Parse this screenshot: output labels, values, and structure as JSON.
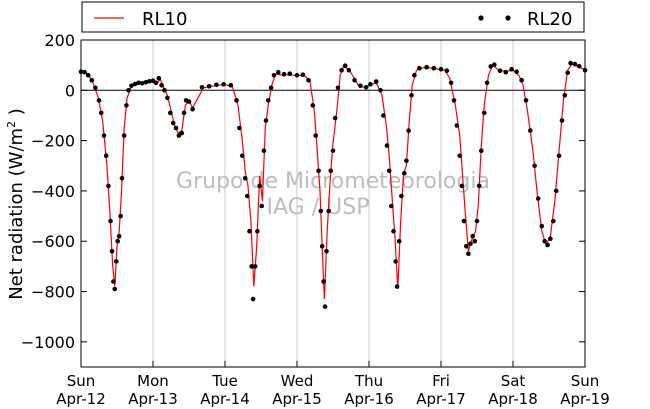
{
  "chart_data": {
    "type": "line",
    "ylabel_main": "Net radiation (W/m",
    "ylabel_sup": "2",
    "ylabel_end": " )",
    "xlabel": "",
    "title": "",
    "ylim": [
      -1100,
      200
    ],
    "xlim": [
      0,
      7
    ],
    "yticks": [
      200,
      0,
      -200,
      -400,
      -600,
      -800,
      -1000
    ],
    "ytick_labels": [
      "200",
      "0",
      "−200",
      "−400",
      "−600",
      "−800",
      "−1000"
    ],
    "xticks": [
      0,
      1,
      2,
      3,
      4,
      5,
      6,
      7
    ],
    "xtick_labels": [
      [
        "Sun",
        "Apr-12"
      ],
      [
        "Mon",
        "Apr-13"
      ],
      [
        "Tue",
        "Apr-14"
      ],
      [
        "Wed",
        "Apr-15"
      ],
      [
        "Thu",
        "Apr-16"
      ],
      [
        "Fri",
        "Apr-17"
      ],
      [
        "Sat",
        "Apr-18"
      ],
      [
        "Sun",
        "Apr-19"
      ]
    ],
    "grid": "vertical",
    "zero_line": 0,
    "legend": {
      "placement": "top",
      "entries": [
        {
          "name": "RL10",
          "style": "line",
          "color": "#ff0000"
        },
        {
          "name": "RL20",
          "style": "markers",
          "color": "#000000"
        }
      ]
    },
    "watermark": [
      "Grupo de Micrometeorologia",
      "IAG / USP"
    ],
    "series": [
      {
        "name": "RL10",
        "color": "#ff0000",
        "points": [
          [
            0.0,
            72
          ],
          [
            0.06,
            70
          ],
          [
            0.12,
            55
          ],
          [
            0.18,
            20
          ],
          [
            0.24,
            -30
          ],
          [
            0.3,
            -120
          ],
          [
            0.36,
            -300
          ],
          [
            0.4,
            -480
          ],
          [
            0.44,
            -700
          ],
          [
            0.47,
            -780
          ],
          [
            0.5,
            -620
          ],
          [
            0.53,
            -560
          ],
          [
            0.56,
            -420
          ],
          [
            0.6,
            -150
          ],
          [
            0.64,
            -30
          ],
          [
            0.7,
            15
          ],
          [
            0.8,
            28
          ],
          [
            0.9,
            30
          ],
          [
            1.0,
            35
          ],
          [
            1.05,
            25
          ],
          [
            1.1,
            45
          ],
          [
            1.15,
            10
          ],
          [
            1.2,
            -20
          ],
          [
            1.25,
            -80
          ],
          [
            1.3,
            -140
          ],
          [
            1.35,
            -170
          ],
          [
            1.4,
            -160
          ],
          [
            1.45,
            -60
          ],
          [
            1.5,
            -40
          ],
          [
            1.55,
            -70
          ],
          [
            1.7,
            10
          ],
          [
            1.8,
            15
          ],
          [
            1.9,
            20
          ],
          [
            2.0,
            22
          ],
          [
            2.1,
            18
          ],
          [
            2.18,
            -60
          ],
          [
            2.24,
            -200
          ],
          [
            2.28,
            -320
          ],
          [
            2.32,
            -380
          ],
          [
            2.36,
            -520
          ],
          [
            2.4,
            -780
          ],
          [
            2.44,
            -620
          ],
          [
            2.48,
            -340
          ],
          [
            2.52,
            -440
          ],
          [
            2.56,
            -150
          ],
          [
            2.6,
            -60
          ],
          [
            2.65,
            20
          ],
          [
            2.7,
            65
          ],
          [
            2.8,
            60
          ],
          [
            2.9,
            62
          ],
          [
            3.0,
            58
          ],
          [
            3.1,
            60
          ],
          [
            3.18,
            35
          ],
          [
            3.24,
            -80
          ],
          [
            3.28,
            -240
          ],
          [
            3.32,
            -400
          ],
          [
            3.36,
            -700
          ],
          [
            3.38,
            -830
          ],
          [
            3.42,
            -560
          ],
          [
            3.46,
            -360
          ],
          [
            3.5,
            -210
          ],
          [
            3.55,
            -90
          ],
          [
            3.6,
            60
          ],
          [
            3.65,
            100
          ],
          [
            3.75,
            70
          ],
          [
            3.85,
            20
          ],
          [
            3.95,
            10
          ],
          [
            4.0,
            20
          ],
          [
            4.1,
            30
          ],
          [
            4.18,
            -20
          ],
          [
            4.24,
            -140
          ],
          [
            4.28,
            -260
          ],
          [
            4.32,
            -420
          ],
          [
            4.36,
            -580
          ],
          [
            4.4,
            -790
          ],
          [
            4.44,
            -520
          ],
          [
            4.48,
            -330
          ],
          [
            4.52,
            -300
          ],
          [
            4.56,
            -120
          ],
          [
            4.6,
            20
          ],
          [
            4.66,
            80
          ],
          [
            4.75,
            90
          ],
          [
            4.85,
            90
          ],
          [
            4.95,
            85
          ],
          [
            5.05,
            80
          ],
          [
            5.12,
            50
          ],
          [
            5.2,
            -60
          ],
          [
            5.26,
            -180
          ],
          [
            5.3,
            -340
          ],
          [
            5.34,
            -500
          ],
          [
            5.38,
            -640
          ],
          [
            5.42,
            -600
          ],
          [
            5.48,
            -560
          ],
          [
            5.52,
            -450
          ],
          [
            5.56,
            -220
          ],
          [
            5.6,
            -60
          ],
          [
            5.66,
            60
          ],
          [
            5.72,
            100
          ],
          [
            5.8,
            80
          ],
          [
            5.9,
            75
          ],
          [
            6.0,
            80
          ],
          [
            6.08,
            60
          ],
          [
            6.14,
            20
          ],
          [
            6.2,
            -80
          ],
          [
            6.28,
            -250
          ],
          [
            6.34,
            -420
          ],
          [
            6.4,
            -560
          ],
          [
            6.46,
            -615
          ],
          [
            6.52,
            -580
          ],
          [
            6.58,
            -440
          ],
          [
            6.64,
            -240
          ],
          [
            6.7,
            -40
          ],
          [
            6.76,
            80
          ],
          [
            6.82,
            105
          ],
          [
            6.9,
            95
          ],
          [
            7.0,
            82
          ]
        ]
      },
      {
        "name": "RL20",
        "color": "#000000",
        "points": [
          [
            0.0,
            74
          ],
          [
            0.05,
            72
          ],
          [
            0.1,
            60
          ],
          [
            0.15,
            40
          ],
          [
            0.2,
            10
          ],
          [
            0.25,
            -40
          ],
          [
            0.28,
            -90
          ],
          [
            0.32,
            -180
          ],
          [
            0.35,
            -260
          ],
          [
            0.38,
            -380
          ],
          [
            0.41,
            -520
          ],
          [
            0.43,
            -640
          ],
          [
            0.45,
            -760
          ],
          [
            0.47,
            -790
          ],
          [
            0.49,
            -680
          ],
          [
            0.51,
            -600
          ],
          [
            0.53,
            -580
          ],
          [
            0.55,
            -500
          ],
          [
            0.57,
            -350
          ],
          [
            0.6,
            -180
          ],
          [
            0.63,
            -60
          ],
          [
            0.66,
            0
          ],
          [
            0.7,
            18
          ],
          [
            0.75,
            25
          ],
          [
            0.8,
            30
          ],
          [
            0.85,
            28
          ],
          [
            0.9,
            32
          ],
          [
            0.95,
            36
          ],
          [
            1.0,
            38
          ],
          [
            1.04,
            30
          ],
          [
            1.08,
            48
          ],
          [
            1.12,
            20
          ],
          [
            1.16,
            0
          ],
          [
            1.2,
            -30
          ],
          [
            1.24,
            -90
          ],
          [
            1.28,
            -130
          ],
          [
            1.32,
            -150
          ],
          [
            1.36,
            -180
          ],
          [
            1.4,
            -170
          ],
          [
            1.43,
            -90
          ],
          [
            1.46,
            -40
          ],
          [
            1.5,
            -45
          ],
          [
            1.55,
            -75
          ],
          [
            1.68,
            12
          ],
          [
            1.78,
            16
          ],
          [
            1.88,
            22
          ],
          [
            1.98,
            24
          ],
          [
            2.08,
            20
          ],
          [
            2.16,
            -40
          ],
          [
            2.2,
            -150
          ],
          [
            2.24,
            -260
          ],
          [
            2.28,
            -350
          ],
          [
            2.31,
            -420
          ],
          [
            2.34,
            -560
          ],
          [
            2.37,
            -700
          ],
          [
            2.39,
            -830
          ],
          [
            2.42,
            -700
          ],
          [
            2.45,
            -560
          ],
          [
            2.48,
            -380
          ],
          [
            2.51,
            -460
          ],
          [
            2.54,
            -240
          ],
          [
            2.57,
            -120
          ],
          [
            2.6,
            -40
          ],
          [
            2.64,
            10
          ],
          [
            2.68,
            60
          ],
          [
            2.74,
            72
          ],
          [
            2.82,
            64
          ],
          [
            2.9,
            66
          ],
          [
            3.0,
            60
          ],
          [
            3.08,
            62
          ],
          [
            3.16,
            40
          ],
          [
            3.22,
            -60
          ],
          [
            3.26,
            -180
          ],
          [
            3.3,
            -320
          ],
          [
            3.33,
            -480
          ],
          [
            3.35,
            -620
          ],
          [
            3.37,
            -760
          ],
          [
            3.39,
            -860
          ],
          [
            3.41,
            -640
          ],
          [
            3.44,
            -480
          ],
          [
            3.47,
            -320
          ],
          [
            3.5,
            -240
          ],
          [
            3.53,
            -110
          ],
          [
            3.57,
            10
          ],
          [
            3.62,
            80
          ],
          [
            3.67,
            98
          ],
          [
            3.72,
            80
          ],
          [
            3.8,
            40
          ],
          [
            3.88,
            18
          ],
          [
            3.96,
            12
          ],
          [
            4.02,
            24
          ],
          [
            4.1,
            35
          ],
          [
            4.16,
            0
          ],
          [
            4.2,
            -100
          ],
          [
            4.25,
            -220
          ],
          [
            4.28,
            -320
          ],
          [
            4.31,
            -460
          ],
          [
            4.34,
            -560
          ],
          [
            4.37,
            -680
          ],
          [
            4.39,
            -780
          ],
          [
            4.42,
            -600
          ],
          [
            4.45,
            -420
          ],
          [
            4.49,
            -330
          ],
          [
            4.52,
            -280
          ],
          [
            4.55,
            -160
          ],
          [
            4.59,
            -20
          ],
          [
            4.63,
            60
          ],
          [
            4.7,
            88
          ],
          [
            4.8,
            92
          ],
          [
            4.9,
            88
          ],
          [
            5.0,
            84
          ],
          [
            5.08,
            78
          ],
          [
            5.14,
            30
          ],
          [
            5.18,
            -40
          ],
          [
            5.22,
            -140
          ],
          [
            5.26,
            -260
          ],
          [
            5.29,
            -380
          ],
          [
            5.32,
            -520
          ],
          [
            5.35,
            -620
          ],
          [
            5.38,
            -650
          ],
          [
            5.41,
            -610
          ],
          [
            5.44,
            -580
          ],
          [
            5.47,
            -600
          ],
          [
            5.5,
            -520
          ],
          [
            5.53,
            -380
          ],
          [
            5.56,
            -240
          ],
          [
            5.6,
            -90
          ],
          [
            5.64,
            30
          ],
          [
            5.69,
            95
          ],
          [
            5.74,
            102
          ],
          [
            5.82,
            78
          ],
          [
            5.9,
            72
          ],
          [
            5.98,
            84
          ],
          [
            6.05,
            74
          ],
          [
            6.12,
            40
          ],
          [
            6.18,
            -40
          ],
          [
            6.24,
            -160
          ],
          [
            6.3,
            -300
          ],
          [
            6.35,
            -430
          ],
          [
            6.4,
            -540
          ],
          [
            6.44,
            -600
          ],
          [
            6.48,
            -615
          ],
          [
            6.52,
            -590
          ],
          [
            6.56,
            -520
          ],
          [
            6.6,
            -400
          ],
          [
            6.64,
            -260
          ],
          [
            6.68,
            -120
          ],
          [
            6.72,
            -20
          ],
          [
            6.76,
            70
          ],
          [
            6.8,
            108
          ],
          [
            6.86,
            104
          ],
          [
            6.92,
            96
          ],
          [
            7.0,
            80
          ]
        ]
      }
    ]
  }
}
